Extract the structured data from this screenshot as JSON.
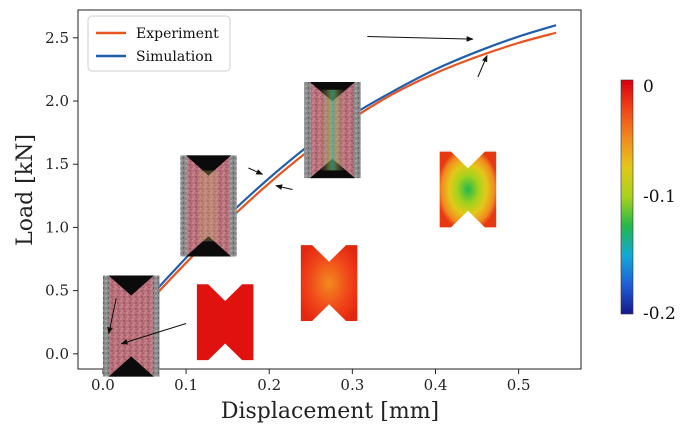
{
  "chart_data": {
    "type": "line",
    "xlabel": "Displacement [mm]",
    "ylabel": "Load [kN]",
    "xlim": [
      -0.03,
      0.575
    ],
    "ylim": [
      -0.12,
      2.72
    ],
    "x_ticks": [
      "0.0",
      "0.1",
      "0.2",
      "0.3",
      "0.4",
      "0.5"
    ],
    "y_ticks": [
      "0.0",
      "0.5",
      "1.0",
      "1.5",
      "2.0",
      "2.5"
    ],
    "grid": false,
    "legend": "top-left",
    "series": [
      {
        "name": "Experiment",
        "color": "#e8531f",
        "x": [
          0.0,
          0.02,
          0.05,
          0.1,
          0.15,
          0.2,
          0.25,
          0.3,
          0.35,
          0.4,
          0.45,
          0.5,
          0.545
        ],
        "y": [
          0.0,
          0.14,
          0.37,
          0.72,
          1.05,
          1.35,
          1.62,
          1.86,
          2.06,
          2.22,
          2.35,
          2.46,
          2.54
        ]
      },
      {
        "name": "Simulation",
        "color": "#1f5fae",
        "x": [
          0.0,
          0.02,
          0.05,
          0.1,
          0.15,
          0.2,
          0.25,
          0.3,
          0.35,
          0.4,
          0.45,
          0.5,
          0.545
        ],
        "y": [
          0.0,
          0.16,
          0.4,
          0.76,
          1.09,
          1.39,
          1.66,
          1.89,
          2.08,
          2.25,
          2.39,
          2.51,
          2.6
        ]
      }
    ],
    "colorbar": {
      "max_label": "0",
      "mid_label": "-0.1",
      "min_label": "-0.2",
      "colors": [
        "#d7000f",
        "#f0451a",
        "#f28b1e",
        "#e3c81a",
        "#a6d21c",
        "#23b84a",
        "#12a9d6",
        "#1f5fd8",
        "#14188c"
      ]
    },
    "insets": [
      {
        "kind": "dic-photo",
        "image": {
          "x": 0.0,
          "y": 0.62,
          "w": 0.068,
          "h": 0.8
        },
        "arrow": {
          "x1": 0.016,
          "y1": 0.44,
          "x2": 0.007,
          "y2": 0.16
        }
      },
      {
        "kind": "fem-field",
        "field": "uniform",
        "image": {
          "x": 0.113,
          "y": 0.55,
          "w": 0.068,
          "h": 0.6
        },
        "arrow": {
          "x1": 0.1,
          "y1": 0.24,
          "x2": 0.022,
          "y2": 0.08
        }
      },
      {
        "kind": "dic-photo",
        "image": {
          "x": 0.093,
          "y": 1.57,
          "w": 0.068,
          "h": 0.8
        },
        "arrow": {
          "x1": 0.175,
          "y1": 1.47,
          "x2": 0.192,
          "y2": 1.42
        }
      },
      {
        "kind": "fem-field",
        "field": "mild",
        "image": {
          "x": 0.238,
          "y": 0.86,
          "w": 0.068,
          "h": 0.6
        },
        "arrow": {
          "x1": 0.228,
          "y1": 1.3,
          "x2": 0.208,
          "y2": 1.33
        }
      },
      {
        "kind": "dic-photo",
        "image": {
          "x": 0.242,
          "y": 2.15,
          "w": 0.068,
          "h": 0.76
        },
        "arrow": {
          "x1": 0.318,
          "y1": 2.51,
          "x2": 0.445,
          "y2": 2.49
        }
      },
      {
        "kind": "fem-field",
        "field": "localized",
        "image": {
          "x": 0.405,
          "y": 1.6,
          "w": 0.068,
          "h": 0.6
        },
        "arrow": {
          "x1": 0.451,
          "y1": 2.19,
          "x2": 0.462,
          "y2": 2.36
        }
      }
    ]
  }
}
